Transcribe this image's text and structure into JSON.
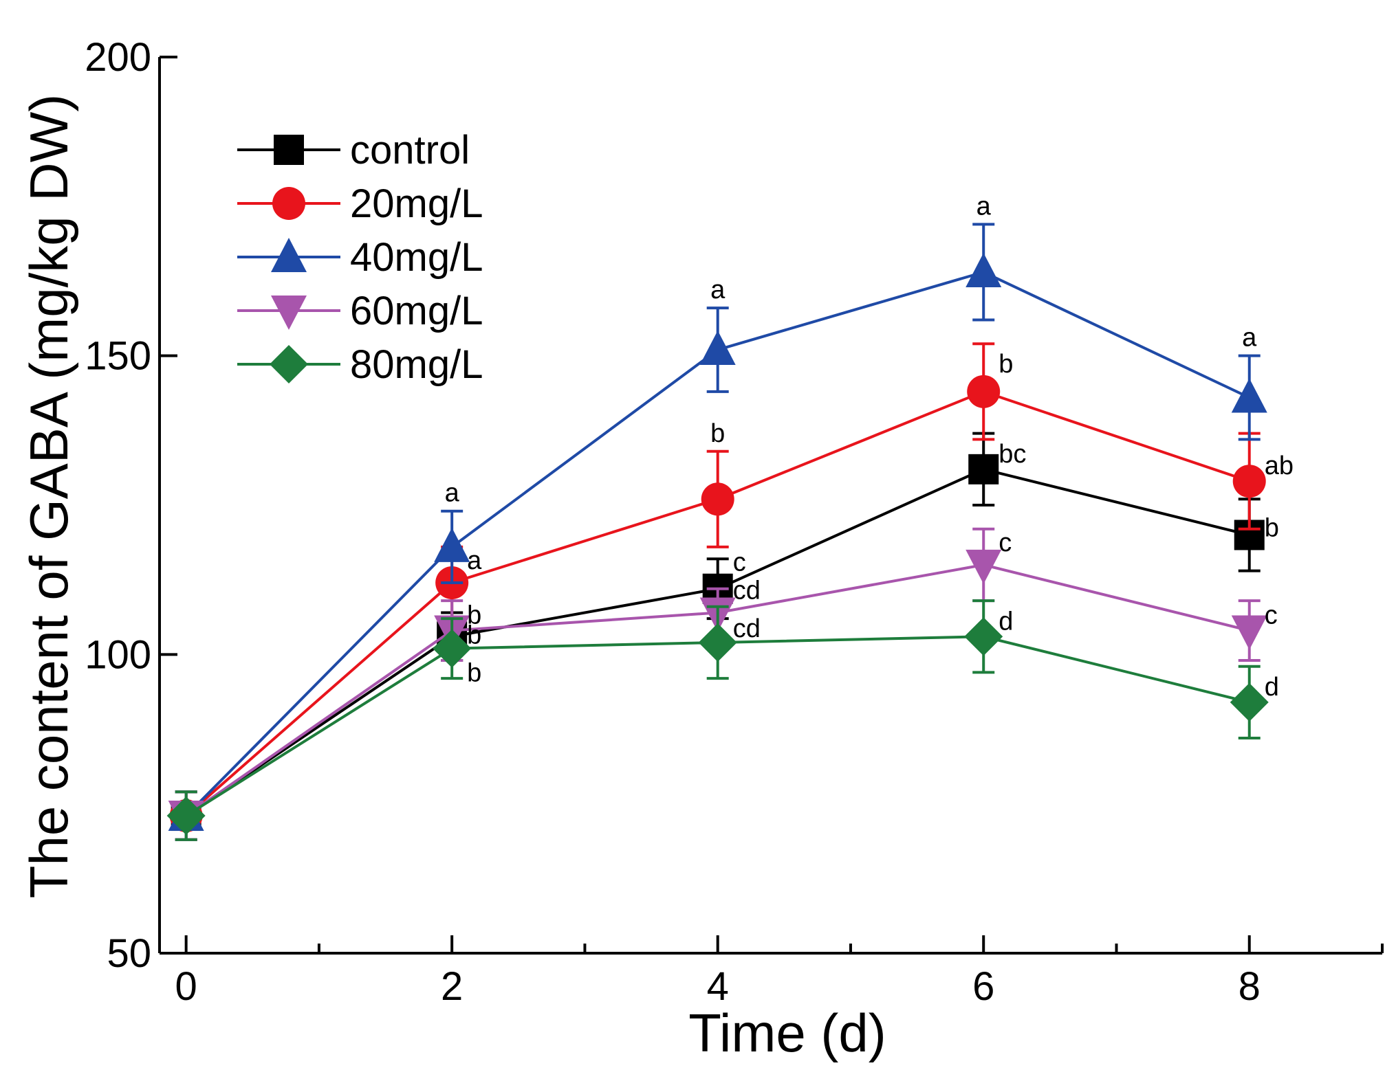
{
  "chart_data": {
    "type": "line",
    "xlabel": "Time (d)",
    "ylabel": "The content of GABA (mg/kg DW)",
    "xlim": [
      -0.2,
      9
    ],
    "ylim": [
      50,
      200
    ],
    "x_ticks": [
      0,
      2,
      4,
      6,
      8
    ],
    "x_minor_ticks": [
      1,
      3,
      5,
      7,
      9
    ],
    "y_ticks": [
      50,
      100,
      150,
      200
    ],
    "x_tick_labels": [
      "0",
      "2",
      "4",
      "6",
      "8"
    ],
    "y_tick_labels": [
      "50",
      "100",
      "150",
      "200"
    ],
    "legend_position": "top-left",
    "grid": false,
    "x": [
      0,
      2,
      4,
      6,
      8
    ],
    "series": [
      {
        "name": "control",
        "color": "#000000",
        "marker": "square",
        "values": [
          73,
          103,
          111,
          131,
          120
        ],
        "errors": [
          4,
          4,
          5,
          6,
          6
        ],
        "labels": [
          "",
          "b",
          "c",
          "bc",
          "b"
        ]
      },
      {
        "name": "20mg/L",
        "color": "#e8141c",
        "marker": "circle",
        "values": [
          73,
          112,
          126,
          144,
          129
        ],
        "errors": [
          4,
          6,
          8,
          8,
          8
        ],
        "labels": [
          "",
          "a",
          "b",
          "b",
          "ab"
        ]
      },
      {
        "name": "40mg/L",
        "color": "#1f4aa6",
        "marker": "triangle-up",
        "values": [
          73,
          118,
          151,
          164,
          143
        ],
        "errors": [
          4,
          6,
          7,
          8,
          7
        ],
        "labels": [
          "",
          "a",
          "a",
          "a",
          "a"
        ]
      },
      {
        "name": "60mg/L",
        "color": "#a855ac",
        "marker": "triangle-down",
        "values": [
          73,
          104,
          107,
          115,
          104
        ],
        "errors": [
          4,
          5,
          4,
          6,
          5
        ],
        "labels": [
          "",
          "b",
          "cd",
          "c",
          "c"
        ]
      },
      {
        "name": "80mg/L",
        "color": "#1e7d3c",
        "marker": "diamond",
        "values": [
          73,
          101,
          102,
          103,
          92
        ],
        "errors": [
          4,
          5,
          6,
          6,
          6
        ],
        "labels": [
          "",
          "b",
          "cd",
          "d",
          "d"
        ]
      }
    ]
  }
}
